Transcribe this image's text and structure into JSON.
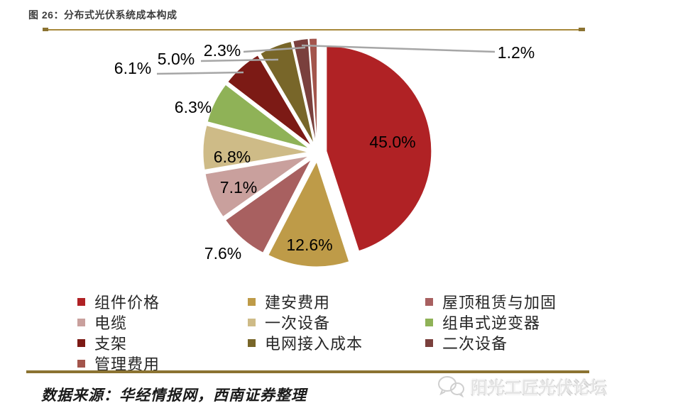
{
  "header": {
    "title": "图 26：分布式光伏系统成本构成"
  },
  "chart_data": {
    "type": "pie",
    "title": "分布式光伏系统成本构成",
    "categories": [
      "组件价格",
      "建安费用",
      "屋顶租赁与加固",
      "电缆",
      "一次设备",
      "组串式逆变器",
      "支架",
      "电网接入成本",
      "二次设备",
      "管理费用"
    ],
    "values": [
      45.0,
      12.6,
      7.6,
      7.1,
      6.8,
      6.3,
      6.1,
      5.0,
      2.3,
      1.2
    ],
    "labels": [
      "45.0%",
      "12.6%",
      "7.6%",
      "7.1%",
      "6.8%",
      "6.3%",
      "6.1%",
      "5.0%",
      "2.3%",
      "1.2%"
    ],
    "colors": [
      "#b02225",
      "#be9b48",
      "#a86060",
      "#c9a09d",
      "#cebb87",
      "#8fb257",
      "#7c1a15",
      "#786629",
      "#7a403d",
      "#a3554c"
    ],
    "start_angle": 0,
    "direction": "clockwise",
    "exploded": true,
    "legend_position": "bottom",
    "legend_columns": 3,
    "leader_line_color": "#a6a6a6",
    "label_color": "#000000"
  },
  "footer": {
    "source": "数据来源：华经情报网，西南证券整理",
    "watermark": "阳光工匠光伏论坛"
  }
}
